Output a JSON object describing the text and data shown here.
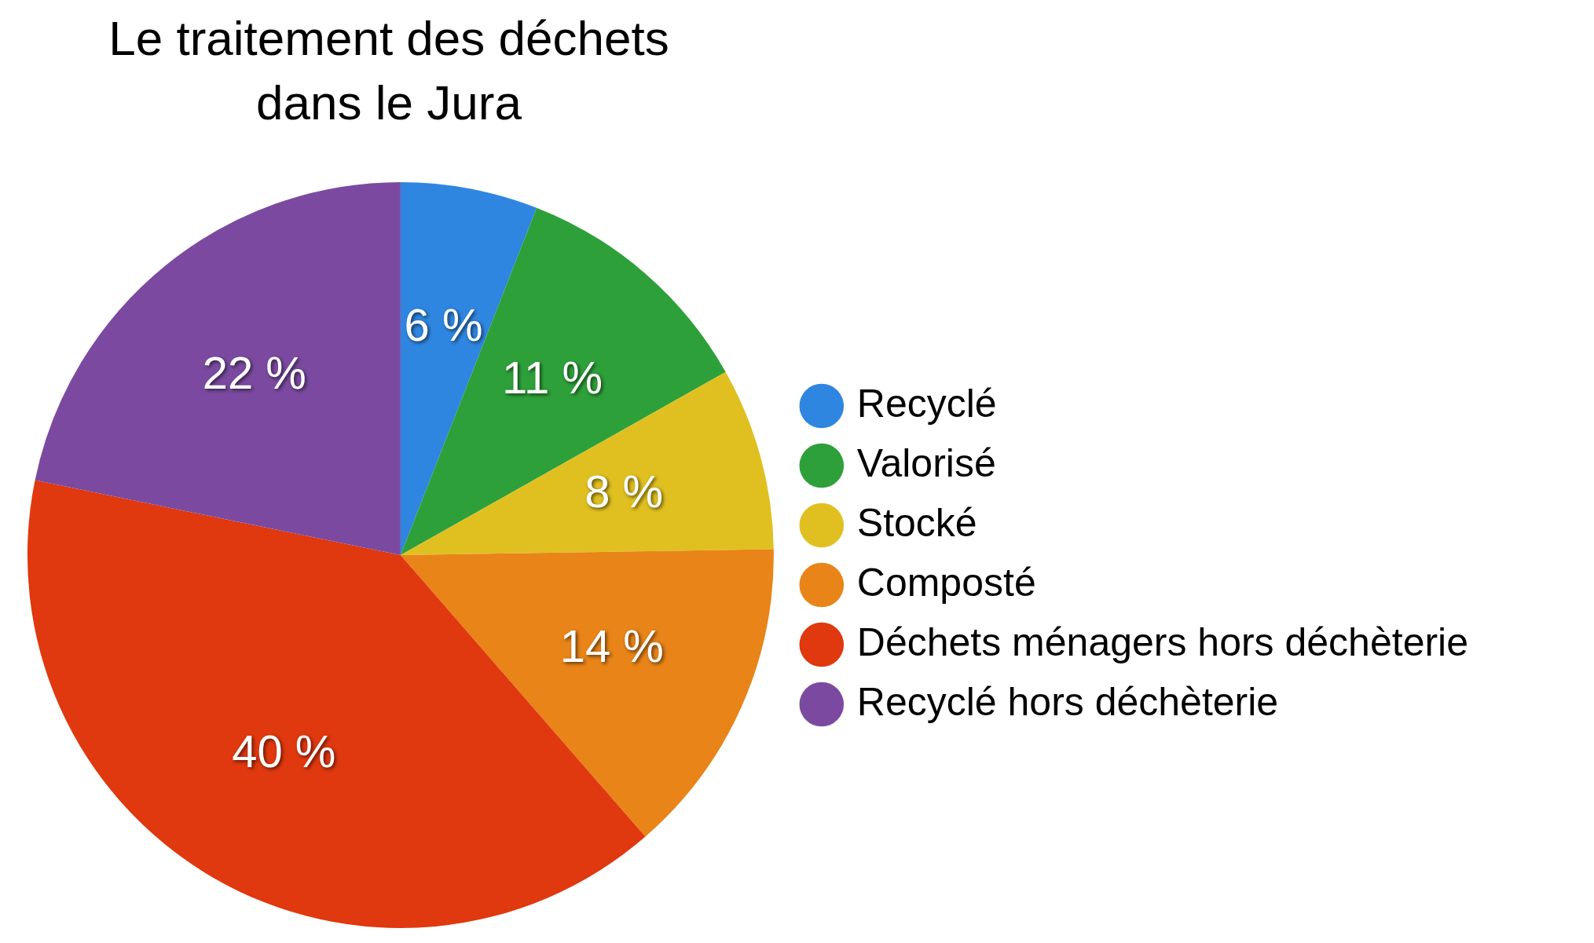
{
  "chart_data": {
    "type": "pie",
    "title": "Le traitement des déchets\ndans le Jura",
    "categories": [
      "Recyclé",
      "Valorisé",
      "Stocké",
      "Composté",
      "Déchets ménagers hors déchèterie",
      "Recyclé hors déchèterie"
    ],
    "values": [
      6,
      11,
      8,
      14,
      40,
      22
    ],
    "value_labels": [
      "6 %",
      "11 %",
      "8 %",
      "14 %",
      "40 %",
      "22 %"
    ],
    "colors": [
      "#2f86e0",
      "#2ea03a",
      "#e0c020",
      "#e88418",
      "#e0380f",
      "#7b4aa0"
    ],
    "legend": "right"
  }
}
